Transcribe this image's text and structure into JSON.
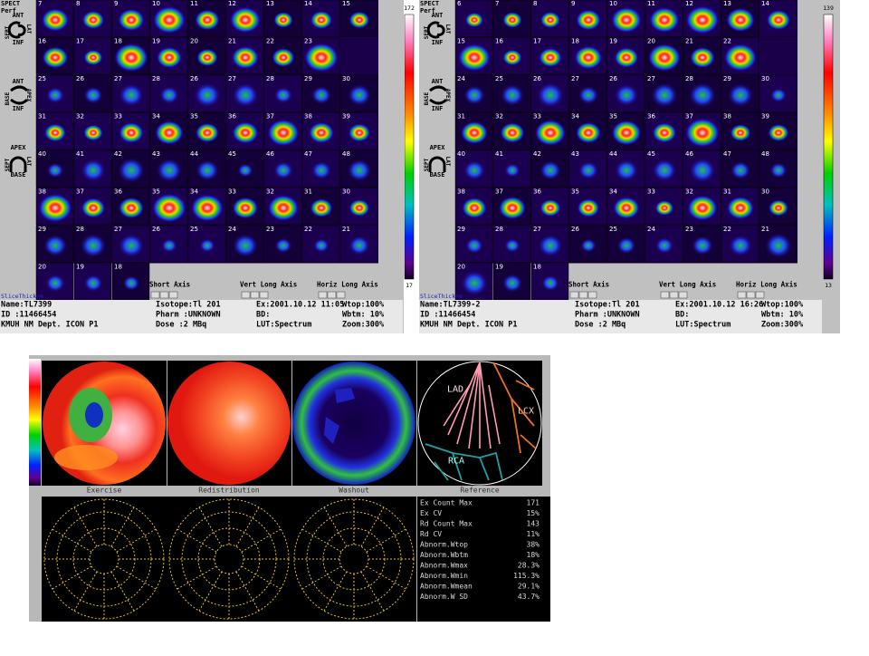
{
  "left": {
    "header": [
      "SPECT",
      "Perf"
    ],
    "orient1": [
      "ANT",
      "SEPT",
      "LAT",
      "INF"
    ],
    "orient2": [
      "ANT",
      "BASE",
      "APEX",
      "INF"
    ],
    "orient3": [
      "APEX",
      "SEPT",
      "LAT",
      "BASE"
    ],
    "frames": [
      [
        7,
        8,
        9,
        10,
        11,
        12,
        13,
        14,
        15
      ],
      [
        16,
        17,
        18,
        19,
        20,
        21,
        22,
        23
      ],
      [
        25,
        26,
        27,
        28,
        26,
        27,
        28,
        29,
        30
      ],
      [
        31,
        32,
        33,
        34,
        35,
        36,
        37,
        38,
        39
      ],
      [
        40,
        41,
        42,
        43,
        44,
        45,
        46,
        47,
        48
      ],
      [
        38,
        37,
        36,
        35,
        34,
        33,
        32,
        31,
        30
      ],
      [
        29,
        28,
        27,
        26,
        25,
        24,
        23,
        22,
        21
      ],
      [
        20,
        19,
        18
      ]
    ],
    "scale_max": "172",
    "scale_min": "17",
    "axes": [
      "Short Axis",
      "Vert Long Axis",
      "Horiz Long Axis"
    ],
    "slice": "SliceThickne",
    "info": [
      [
        "Name:TL7399",
        "Isotope:Tl 201",
        "Ex:2001.10.12 11:05",
        "Wtop:100%"
      ],
      [
        "ID :11466454",
        "Pharm :UNKNOWN",
        "BD:",
        "Wbtm: 10%"
      ],
      [
        "KMUH NM Dept. ICON P1",
        "Dose :2 MBq",
        "LUT:Spectrum",
        "Zoom:300%"
      ]
    ]
  },
  "right": {
    "header": [
      "SPECT",
      "Perf"
    ],
    "orient1": [
      "ANT",
      "SEPT",
      "LAT",
      "INF"
    ],
    "orient2": [
      "ANT",
      "BASE",
      "APEX",
      "INF"
    ],
    "orient3": [
      "APEX",
      "SEPT",
      "LAT",
      "BASE"
    ],
    "frames": [
      [
        6,
        7,
        8,
        9,
        10,
        11,
        12,
        13,
        14
      ],
      [
        15,
        16,
        17,
        18,
        19,
        20,
        21,
        22
      ],
      [
        24,
        25,
        26,
        27,
        26,
        27,
        28,
        29,
        30
      ],
      [
        31,
        32,
        33,
        34,
        35,
        36,
        37,
        38,
        39
      ],
      [
        40,
        41,
        42,
        43,
        44,
        45,
        46,
        47,
        48
      ],
      [
        38,
        37,
        36,
        35,
        34,
        33,
        32,
        31,
        30
      ],
      [
        29,
        28,
        27,
        26,
        25,
        24,
        23,
        22,
        21
      ],
      [
        20,
        19,
        18
      ]
    ],
    "scale_max": "139",
    "scale_min": "13",
    "axes": [
      "Short Axis",
      "Vert Long Axis",
      "Horiz Long Axis"
    ],
    "slice": "SliceThickne",
    "info": [
      [
        "Name:TL7399-2",
        "Isotope:Tl 201",
        "Ex:2001.10.12 16:26",
        "Wtop:100%"
      ],
      [
        "ID :11466454",
        "Pharm :UNKNOWN",
        "BD:",
        "Wbtm: 10%"
      ],
      [
        "KMUH NM Dept. ICON P1",
        "Dose :2 MBq",
        "LUT:Spectrum",
        "Zoom:300%"
      ]
    ]
  },
  "polar": {
    "captions": [
      "Exercise",
      "Redistribution",
      "Washout",
      "Reference"
    ],
    "territories": [
      "LAD",
      "LCX",
      "RCA"
    ],
    "stats": [
      [
        "Ex Count Max",
        "171"
      ],
      [
        "Ex CV",
        "15%"
      ],
      [
        "Rd Count Max",
        "143"
      ],
      [
        "Rd CV",
        "11%"
      ],
      [
        "Abnorm.Wtop",
        "38%"
      ],
      [
        "Abnorm.Wbtm",
        "18%"
      ],
      [
        "Abnorm.Wmax",
        "28.3%"
      ],
      [
        "Abnorm.Wmin",
        "115.3%"
      ],
      [
        "Abnorm.Wmean",
        "29.1%"
      ],
      [
        "Abnorm.W SD",
        "43.7%"
      ]
    ]
  }
}
